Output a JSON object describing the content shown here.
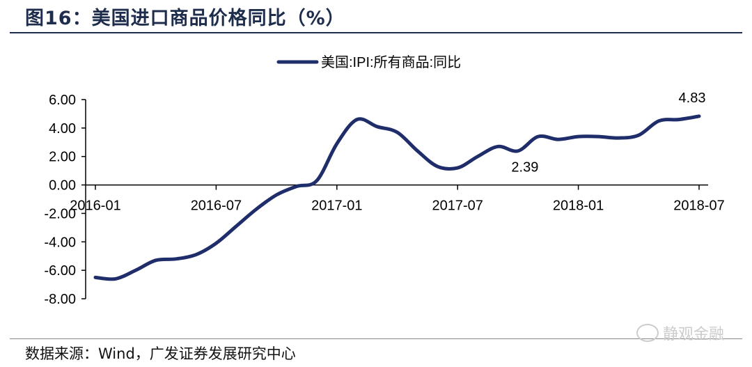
{
  "figure": {
    "title": "图16：美国进口商品价格同比（%）",
    "source": "数据来源：Wind，广发证券发展研究中心",
    "watermark": "静观金融"
  },
  "colors": {
    "line": "#1f2d6b",
    "axis": "#000000",
    "title": "#1f2d4d"
  },
  "chart_data": {
    "type": "line",
    "title": "",
    "xlabel": "",
    "ylabel": "",
    "ylim": [
      -8,
      6
    ],
    "yticks": [
      "6.00",
      "4.00",
      "2.00",
      "0.00",
      "-2.00",
      "-4.00",
      "-6.00",
      "-8.00"
    ],
    "xticks": [
      "2016-01",
      "2016-07",
      "2017-01",
      "2017-07",
      "2018-01",
      "2018-07"
    ],
    "legend": {
      "position": "top-center"
    },
    "grid": false,
    "series": [
      {
        "name": "美国:IPI:所有商品:同比",
        "x": [
          "2016-01",
          "2016-02",
          "2016-03",
          "2016-04",
          "2016-05",
          "2016-06",
          "2016-07",
          "2016-08",
          "2016-09",
          "2016-10",
          "2016-11",
          "2016-12",
          "2017-01",
          "2017-02",
          "2017-03",
          "2017-04",
          "2017-05",
          "2017-06",
          "2017-07",
          "2017-08",
          "2017-09",
          "2017-10",
          "2017-11",
          "2017-12",
          "2018-01",
          "2018-02",
          "2018-03",
          "2018-04",
          "2018-05",
          "2018-06",
          "2018-07"
        ],
        "values": [
          -6.5,
          -6.6,
          -6.0,
          -5.3,
          -5.2,
          -4.9,
          -4.1,
          -2.9,
          -1.7,
          -0.7,
          -0.1,
          0.3,
          2.9,
          4.6,
          4.1,
          3.7,
          2.4,
          1.3,
          1.2,
          2.0,
          2.7,
          2.39,
          3.4,
          3.2,
          3.4,
          3.4,
          3.3,
          3.5,
          4.5,
          4.6,
          4.83
        ]
      }
    ],
    "annotations": [
      {
        "x": "2017-10",
        "label": "2.39"
      },
      {
        "x": "2018-07",
        "label": "4.83"
      }
    ]
  }
}
